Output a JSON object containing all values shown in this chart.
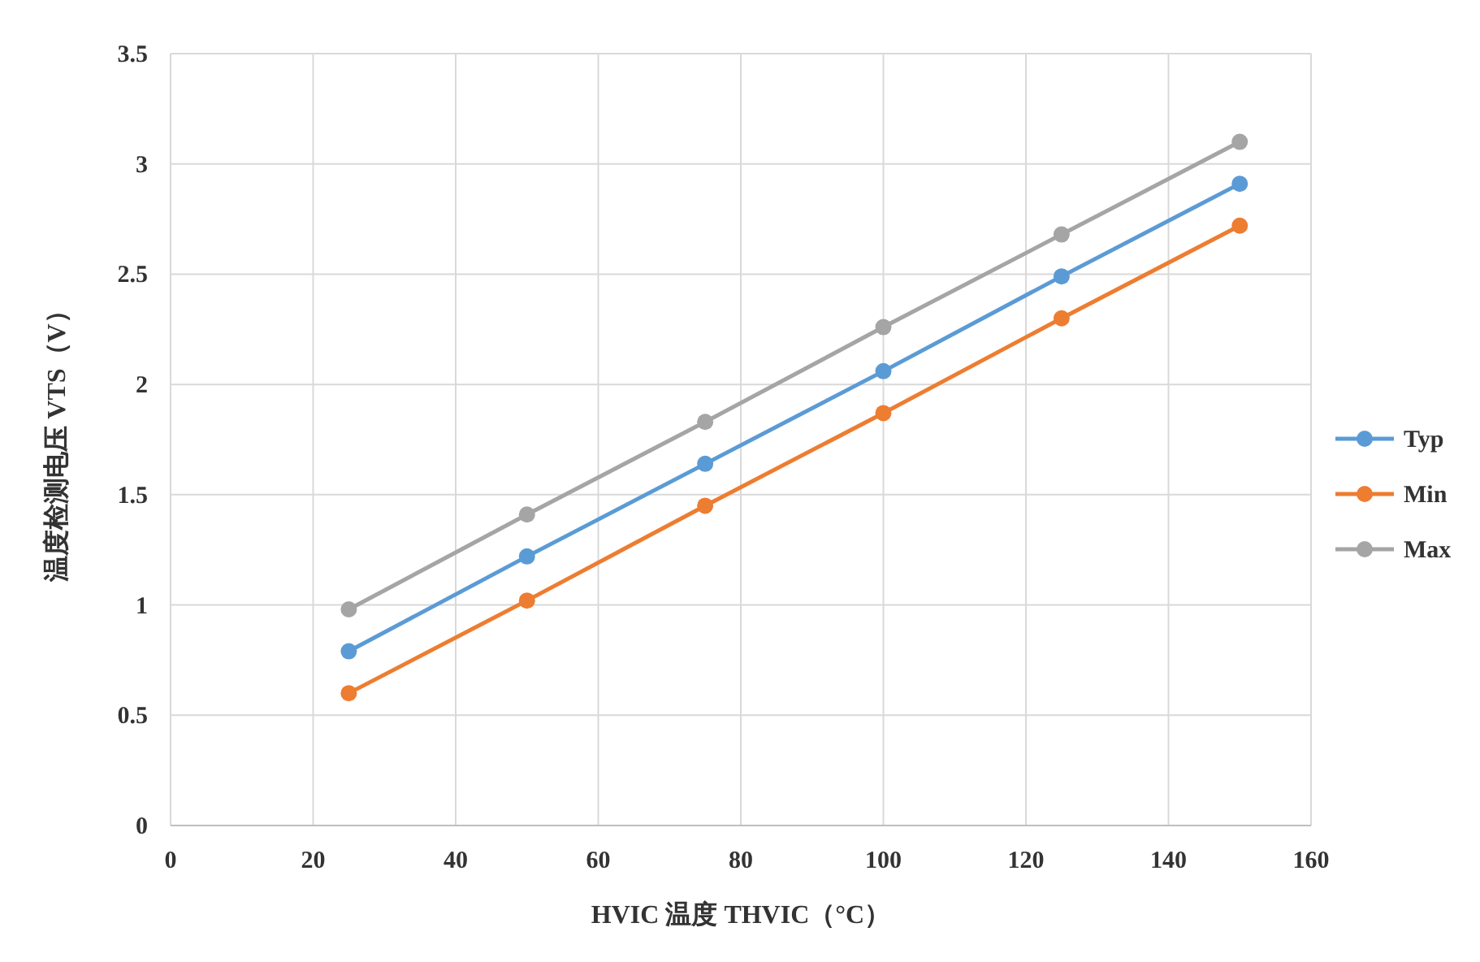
{
  "chart_data": {
    "type": "line",
    "xlabel": "HVIC 温度 THVIC（°C）",
    "ylabel": "温度检测电压 VTS（V）",
    "x": [
      25,
      50,
      75,
      100,
      125,
      150
    ],
    "series": [
      {
        "name": "Typ",
        "color": "#5b9bd5",
        "values": [
          0.79,
          1.22,
          1.64,
          2.06,
          2.49,
          2.91
        ]
      },
      {
        "name": "Min",
        "color": "#ed7d31",
        "values": [
          0.6,
          1.02,
          1.45,
          1.87,
          2.3,
          2.72
        ]
      },
      {
        "name": "Max",
        "color": "#a5a5a5",
        "values": [
          0.98,
          1.41,
          1.83,
          2.26,
          2.68,
          3.1
        ]
      }
    ],
    "xlim": [
      0,
      160
    ],
    "xticks": [
      0,
      20,
      40,
      60,
      80,
      100,
      120,
      140,
      160
    ],
    "ylim": [
      0,
      3.5
    ],
    "yticks": [
      0,
      {
        "value": 0.5,
        "label": "0.5"
      },
      1,
      {
        "value": 1.5,
        "label": "1.5"
      },
      2,
      {
        "value": 2.5,
        "label": "2.5"
      },
      3,
      {
        "value": 3.5,
        "label": "3.5"
      }
    ],
    "grid": true,
    "legend": "right",
    "marker": "circle",
    "line_style": "solid"
  }
}
